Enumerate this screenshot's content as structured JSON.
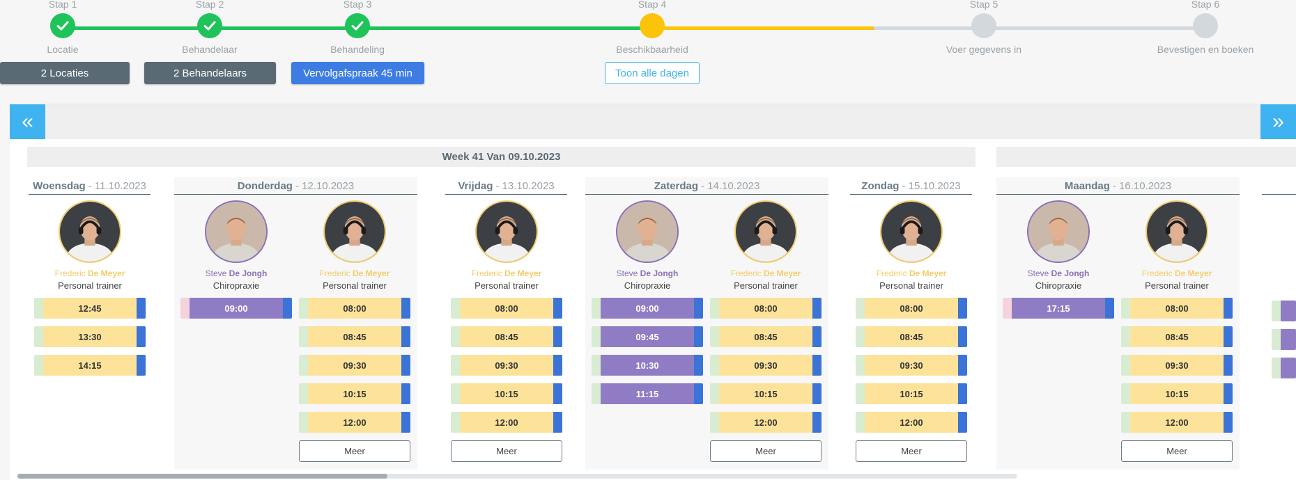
{
  "steps": [
    {
      "num": "Stap 1",
      "label": "Locatie",
      "state": "done"
    },
    {
      "num": "Stap 2",
      "label": "Behandelaar",
      "state": "done"
    },
    {
      "num": "Stap 3",
      "label": "Behandeling",
      "state": "done"
    },
    {
      "num": "Stap 4",
      "label": "Beschikbaarheid",
      "state": "current"
    },
    {
      "num": "Stap 5",
      "label": "Voer gegevens in",
      "state": "todo"
    },
    {
      "num": "Stap 6",
      "label": "Bevestigen en boeken",
      "state": "todo"
    }
  ],
  "filters": {
    "locations": "2 Locaties",
    "practitioners": "2 Behandelaars",
    "treatment": "Vervolgafspraak 45 min",
    "show_all_days": "Toon alle dagen"
  },
  "nav": {
    "prev_icon": "double-chevron-left-icon",
    "next_icon": "double-chevron-right-icon"
  },
  "week_label": "Week 41 Van 09.10.2023",
  "colors": {
    "done": "#1fc35a",
    "current": "#fbc30a",
    "todo": "#d3d8dc",
    "nav": "#3fb3ef",
    "dark_btn": "#5a6a74",
    "blue_btn": "#3d7de3",
    "yellow_slot": "#fde39a",
    "purple_slot": "#8f7cc4"
  },
  "days": [
    {
      "name": "Woensdag",
      "date": "- 11.10.2023",
      "practitioners": [
        {
          "first": "Frederic",
          "last": "De Meyer",
          "role": "Personal trainer",
          "color": "y",
          "avatar_icon": "headset-person-icon",
          "slots": [
            "12:45",
            "13:30",
            "14:15"
          ],
          "more": null
        }
      ]
    },
    {
      "name": "Donderdag",
      "date": "- 12.10.2023",
      "practitioners": [
        {
          "first": "Steve",
          "last": "De Jongh",
          "role": "Chiropraxie",
          "color": "p",
          "avatar_icon": "person-portrait-icon",
          "slots": [
            "09:00"
          ],
          "more": null
        },
        {
          "first": "Frederic",
          "last": "De Meyer",
          "role": "Personal trainer",
          "color": "y",
          "avatar_icon": "headset-person-icon",
          "slots": [
            "08:00",
            "08:45",
            "09:30",
            "10:15",
            "12:00"
          ],
          "more": "Meer"
        }
      ]
    },
    {
      "name": "Vrijdag",
      "date": "- 13.10.2023",
      "practitioners": [
        {
          "first": "Frederic",
          "last": "De Meyer",
          "role": "Personal trainer",
          "color": "y",
          "avatar_icon": "headset-person-icon",
          "slots": [
            "08:00",
            "08:45",
            "09:30",
            "10:15",
            "12:00"
          ],
          "more": "Meer"
        }
      ]
    },
    {
      "name": "Zaterdag",
      "date": "- 14.10.2023",
      "practitioners": [
        {
          "first": "Steve",
          "last": "De Jongh",
          "role": "Chiropraxie",
          "color": "p",
          "avatar_icon": "person-portrait-icon",
          "slots": [
            "09:00",
            "09:45",
            "10:30",
            "11:15"
          ],
          "more": null
        },
        {
          "first": "Frederic",
          "last": "De Meyer",
          "role": "Personal trainer",
          "color": "y",
          "avatar_icon": "headset-person-icon",
          "slots": [
            "08:00",
            "08:45",
            "09:30",
            "10:15",
            "12:00"
          ],
          "more": "Meer"
        }
      ]
    },
    {
      "name": "Zondag",
      "date": "- 15.10.2023",
      "practitioners": [
        {
          "first": "Frederic",
          "last": "De Meyer",
          "role": "Personal trainer",
          "color": "y",
          "avatar_icon": "headset-person-icon",
          "slots": [
            "08:00",
            "08:45",
            "09:30",
            "10:15",
            "12:00"
          ],
          "more": "Meer"
        }
      ]
    },
    {
      "name": "Maandag",
      "date": "- 16.10.2023",
      "practitioners": [
        {
          "first": "Steve",
          "last": "De Jongh",
          "role": "Chiropraxie",
          "color": "p",
          "avatar_icon": "person-portrait-icon",
          "slots": [
            "17:15"
          ],
          "more": null
        },
        {
          "first": "Frederic",
          "last": "De Meyer",
          "role": "Personal trainer",
          "color": "y",
          "avatar_icon": "headset-person-icon",
          "slots": [
            "08:00",
            "08:45",
            "09:30",
            "10:15",
            "12:00"
          ],
          "more": "Meer"
        }
      ]
    }
  ],
  "scroll_position": 0.37
}
